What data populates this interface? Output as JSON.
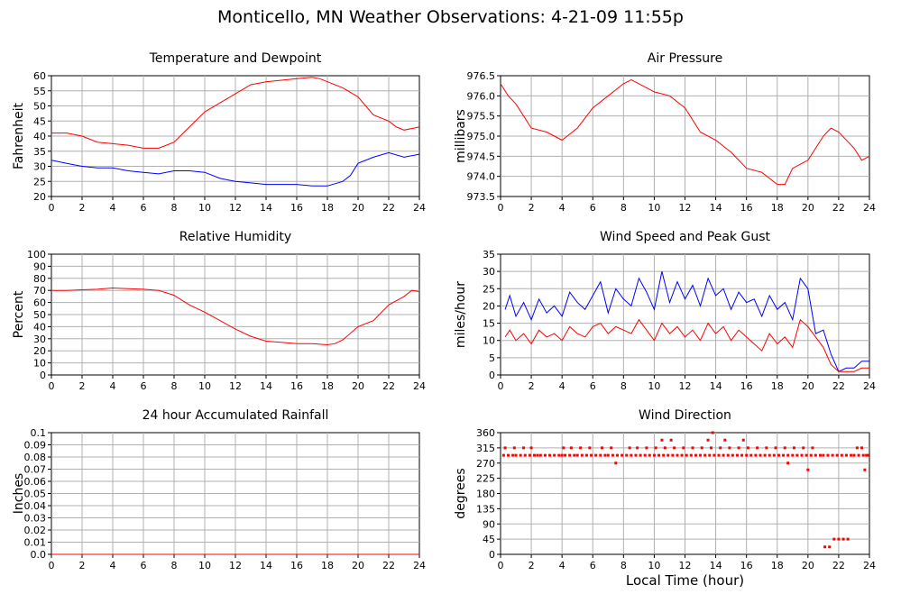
{
  "page": {
    "title": "Monticello, MN Weather Observations: 4-21-09 11:55p"
  },
  "x_axis": {
    "label": "Local Time (hour)",
    "ticks": [
      0,
      2,
      4,
      6,
      8,
      10,
      12,
      14,
      16,
      18,
      20,
      22,
      24
    ],
    "range": [
      0,
      24
    ]
  },
  "chart_data": [
    {
      "type": "line",
      "title": "Temperature and Dewpoint",
      "ylabel": "Fahrenheit",
      "xlim": [
        0,
        24
      ],
      "ylim": [
        20,
        60
      ],
      "yticks": [
        20,
        25,
        30,
        35,
        40,
        45,
        50,
        55,
        60
      ],
      "ytick_labels": [
        "20",
        "25",
        "30",
        "35",
        "40",
        "45",
        "50",
        "55",
        "60"
      ],
      "grid": true,
      "series": [
        {
          "color": "#ff0000",
          "x": [
            0,
            1,
            2,
            3,
            4,
            5,
            6,
            7,
            7.5,
            8,
            9,
            10,
            11,
            12,
            13,
            14,
            15,
            16,
            17,
            17.5,
            18,
            19,
            20,
            21,
            22,
            22.5,
            23,
            24
          ],
          "values": [
            41,
            41,
            40,
            38,
            37.5,
            37,
            36,
            36,
            37,
            38,
            43,
            48,
            51,
            54,
            57,
            58,
            58.5,
            59,
            59.5,
            59,
            58,
            56,
            53,
            47,
            45,
            43,
            42,
            43
          ]
        },
        {
          "color": "#0000ff",
          "x": [
            0,
            1,
            2,
            3,
            4,
            5,
            6,
            7,
            8,
            9,
            10,
            11,
            12,
            13,
            14,
            15,
            16,
            17,
            18,
            19,
            19.5,
            20,
            21,
            22,
            23,
            24
          ],
          "values": [
            32,
            31,
            30,
            29.5,
            29.5,
            28.5,
            28,
            27.5,
            28.5,
            28.5,
            28,
            26,
            25,
            24.5,
            24,
            24,
            24,
            23.5,
            23.5,
            25,
            27,
            31,
            33,
            34.5,
            33,
            34
          ]
        }
      ]
    },
    {
      "type": "line",
      "title": "Air Pressure",
      "ylabel": "millibars",
      "xlim": [
        0,
        24
      ],
      "ylim": [
        973.5,
        976.5
      ],
      "yticks": [
        973.5,
        974,
        974.5,
        975,
        975.5,
        976,
        976.5
      ],
      "ytick_labels": [
        "973.5",
        "974.0",
        "974.5",
        "975.0",
        "975.5",
        "976.0",
        "976.5"
      ],
      "grid": true,
      "series": [
        {
          "color": "#ff0000",
          "x": [
            0,
            0.5,
            1,
            1.5,
            2,
            3,
            3.5,
            4,
            5,
            6,
            7,
            8,
            8.5,
            9,
            10,
            11,
            12,
            13,
            14,
            15,
            16,
            17,
            18,
            18.5,
            19,
            20,
            21,
            21.5,
            22,
            23,
            23.5,
            24
          ],
          "values": [
            976.3,
            976,
            975.8,
            975.5,
            975.2,
            975.1,
            975,
            974.9,
            975.2,
            975.7,
            976,
            976.3,
            976.4,
            976.3,
            976.1,
            976,
            975.7,
            975.1,
            974.9,
            974.6,
            974.2,
            974.1,
            973.8,
            973.8,
            974.2,
            974.4,
            975,
            975.2,
            975.1,
            974.7,
            974.4,
            974.5
          ]
        }
      ]
    },
    {
      "type": "line",
      "title": "Relative Humidity",
      "ylabel": "Percent",
      "xlim": [
        0,
        24
      ],
      "ylim": [
        0,
        100
      ],
      "yticks": [
        0,
        10,
        20,
        30,
        40,
        50,
        60,
        70,
        80,
        90,
        100
      ],
      "ytick_labels": [
        "0",
        "10",
        "20",
        "30",
        "40",
        "50",
        "60",
        "70",
        "80",
        "90",
        "100"
      ],
      "grid": true,
      "series": [
        {
          "color": "#ff0000",
          "x": [
            0,
            1,
            2,
            3,
            4,
            5,
            6,
            7,
            7.5,
            8,
            9,
            10,
            11,
            12,
            13,
            14,
            15,
            16,
            17,
            18,
            18.5,
            19,
            20,
            21,
            22,
            23,
            23.5,
            24
          ],
          "values": [
            70,
            70,
            70.5,
            71,
            72,
            71.5,
            71,
            70,
            68,
            66,
            58,
            52,
            45,
            38,
            32,
            28,
            27,
            26,
            26,
            25,
            26,
            29,
            40,
            45,
            58,
            65,
            70,
            69
          ]
        }
      ]
    },
    {
      "type": "line",
      "title": "Wind Speed and Peak Gust",
      "ylabel": "miles/hour",
      "xlim": [
        0,
        24
      ],
      "ylim": [
        0,
        35
      ],
      "yticks": [
        0,
        5,
        10,
        15,
        20,
        25,
        30,
        35
      ],
      "ytick_labels": [
        "0",
        "5",
        "10",
        "15",
        "20",
        "25",
        "30",
        "35"
      ],
      "grid": true,
      "series": [
        {
          "color": "#0000ff",
          "x": [
            0.3,
            0.6,
            1,
            1.5,
            2,
            2.5,
            3,
            3.5,
            4,
            4.5,
            5,
            5.5,
            6,
            6.5,
            7,
            7.5,
            8,
            8.5,
            9,
            9.5,
            10,
            10.5,
            11,
            11.5,
            12,
            12.5,
            13,
            13.5,
            14,
            14.5,
            15,
            15.5,
            16,
            16.5,
            17,
            17.5,
            18,
            18.5,
            19,
            19.5,
            20,
            20.5,
            21,
            21.5,
            22,
            22.5,
            23,
            23.5,
            24
          ],
          "values": [
            19,
            23,
            17,
            21,
            16,
            22,
            18,
            20,
            17,
            24,
            21,
            19,
            23,
            27,
            18,
            25,
            22,
            20,
            28,
            24,
            19,
            30,
            21,
            27,
            22,
            26,
            20,
            28,
            23,
            25,
            19,
            24,
            21,
            22,
            17,
            23,
            19,
            21,
            16,
            28,
            25,
            12,
            13,
            6,
            1,
            2,
            2,
            4,
            4
          ]
        },
        {
          "color": "#ff0000",
          "x": [
            0.3,
            0.6,
            1,
            1.5,
            2,
            2.5,
            3,
            3.5,
            4,
            4.5,
            5,
            5.5,
            6,
            6.5,
            7,
            7.5,
            8,
            8.5,
            9,
            9.5,
            10,
            10.5,
            11,
            11.5,
            12,
            12.5,
            13,
            13.5,
            14,
            14.5,
            15,
            15.5,
            16,
            16.5,
            17,
            17.5,
            18,
            18.5,
            19,
            19.5,
            20,
            20.5,
            21,
            21.5,
            22,
            22.5,
            23,
            23.5,
            24
          ],
          "values": [
            11,
            13,
            10,
            12,
            9,
            13,
            11,
            12,
            10,
            14,
            12,
            11,
            14,
            15,
            12,
            14,
            13,
            12,
            16,
            13,
            10,
            15,
            12,
            14,
            11,
            13,
            10,
            15,
            12,
            14,
            10,
            13,
            11,
            9,
            7,
            12,
            9,
            11,
            8,
            16,
            14,
            11,
            8,
            3,
            1,
            1,
            1,
            2,
            2
          ]
        }
      ]
    },
    {
      "type": "line",
      "title": "24 hour Accumulated Rainfall",
      "ylabel": "Inches",
      "xlim": [
        0,
        24
      ],
      "ylim": [
        0,
        0.1
      ],
      "yticks": [
        0,
        0.01,
        0.02,
        0.03,
        0.04,
        0.05,
        0.06,
        0.07,
        0.08,
        0.09,
        0.1
      ],
      "ytick_labels": [
        "0.0",
        "0.01",
        "0.02",
        "0.03",
        "0.04",
        "0.05",
        "0.06",
        "0.07",
        "0.08",
        "0.09",
        "0.1"
      ],
      "grid": true,
      "series": [
        {
          "color": "#ff0000",
          "x": [
            0,
            24
          ],
          "values": [
            0,
            0
          ]
        }
      ]
    },
    {
      "type": "scatter",
      "title": "Wind Direction",
      "ylabel": "degrees",
      "xlim": [
        0,
        24
      ],
      "ylim": [
        0,
        360
      ],
      "yticks": [
        0,
        45,
        90,
        135,
        180,
        225,
        270,
        315,
        360
      ],
      "ytick_labels": [
        "0",
        "45",
        "90",
        "135",
        "180",
        "225",
        "270",
        "315",
        "360"
      ],
      "grid": true,
      "series": [
        {
          "color": "#ff0000",
          "x": [
            0.2,
            0.5,
            0.8,
            1,
            1.3,
            1.6,
            1.9,
            2.2,
            2.4,
            2.6,
            2.9,
            3.2,
            3.5,
            3.8,
            4.0,
            4.2,
            4.5,
            4.8,
            5.0,
            5.3,
            5.6,
            5.9,
            6.2,
            6.5,
            6.8,
            7.0,
            7.3,
            7.6,
            7.9,
            8.2,
            8.5,
            8.8,
            9.1,
            9.4,
            9.7,
            10.0,
            10.3,
            10.6,
            10.9,
            11.2,
            11.5,
            11.8,
            12.1,
            12.4,
            12.7,
            13.0,
            13.3,
            13.6,
            13.9,
            14.2,
            14.5,
            14.8,
            15.1,
            15.4,
            15.7,
            16.0,
            16.3,
            16.6,
            16.9,
            17.2,
            17.5,
            17.8,
            18.1,
            18.4,
            18.7,
            19.0,
            19.3,
            19.6,
            19.9,
            20.2,
            20.5,
            20.8,
            21.0,
            21.3,
            21.6,
            21.9,
            22.2,
            22.5,
            22.8,
            23.0,
            23.3,
            23.6,
            23.9,
            0.3,
            0.9,
            1.5,
            2.0,
            4.1,
            4.6,
            5.2,
            5.8,
            6.6,
            7.2,
            8.4,
            8.9,
            9.5,
            10.1,
            10.7,
            11.3,
            11.9,
            12.5,
            13.1,
            13.7,
            14.3,
            14.9,
            15.5,
            16.1,
            16.7,
            17.3,
            17.9,
            18.5,
            19.1,
            19.7,
            20.3,
            21.1,
            21.4,
            21.7,
            22.0,
            22.3,
            22.6,
            23.2,
            23.5,
            23.8,
            10.5,
            11.1,
            13.5,
            13.8,
            14.6,
            15.8,
            7.5,
            18.7,
            20.0,
            23.7
          ],
          "values": [
            293,
            293,
            293,
            293,
            293,
            293,
            293,
            293,
            293,
            293,
            293,
            293,
            293,
            293,
            293,
            293,
            293,
            293,
            293,
            293,
            293,
            293,
            293,
            293,
            293,
            293,
            293,
            293,
            293,
            293,
            293,
            293,
            293,
            293,
            293,
            293,
            293,
            293,
            293,
            293,
            293,
            293,
            293,
            293,
            293,
            293,
            293,
            293,
            293,
            293,
            293,
            293,
            293,
            293,
            293,
            293,
            293,
            293,
            293,
            293,
            293,
            293,
            293,
            293,
            293,
            293,
            293,
            293,
            293,
            293,
            293,
            293,
            293,
            293,
            293,
            293,
            293,
            293,
            293,
            293,
            293,
            293,
            293,
            315,
            315,
            315,
            315,
            315,
            315,
            315,
            315,
            315,
            315,
            315,
            315,
            315,
            315,
            315,
            315,
            315,
            315,
            315,
            315,
            315,
            315,
            315,
            315,
            315,
            315,
            315,
            315,
            315,
            315,
            315,
            22,
            22,
            45,
            45,
            45,
            45,
            315,
            315,
            293,
            338,
            338,
            338,
            360,
            338,
            338,
            270,
            270,
            250,
            250
          ]
        }
      ]
    }
  ]
}
